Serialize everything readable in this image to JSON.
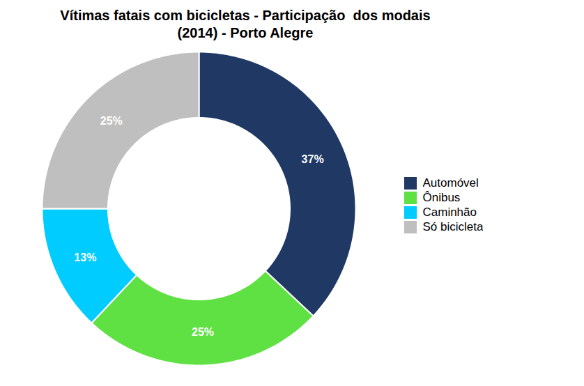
{
  "chart_data": {
    "type": "pie",
    "title": "Vítimas fatais com bicicletas - Participação  dos modais\n(2014) - Porto Alegre",
    "categories": [
      "Automóvel",
      "Ônibus",
      "Caminhão",
      "Só bicicleta"
    ],
    "values": [
      37,
      25,
      13,
      25
    ],
    "value_labels": [
      "37%",
      "25%",
      "13%",
      "25%"
    ],
    "colors": [
      "#1F3864",
      "#5FE043",
      "#00CCFF",
      "#BFBFBF"
    ],
    "data_labels": true,
    "legend": "right"
  }
}
